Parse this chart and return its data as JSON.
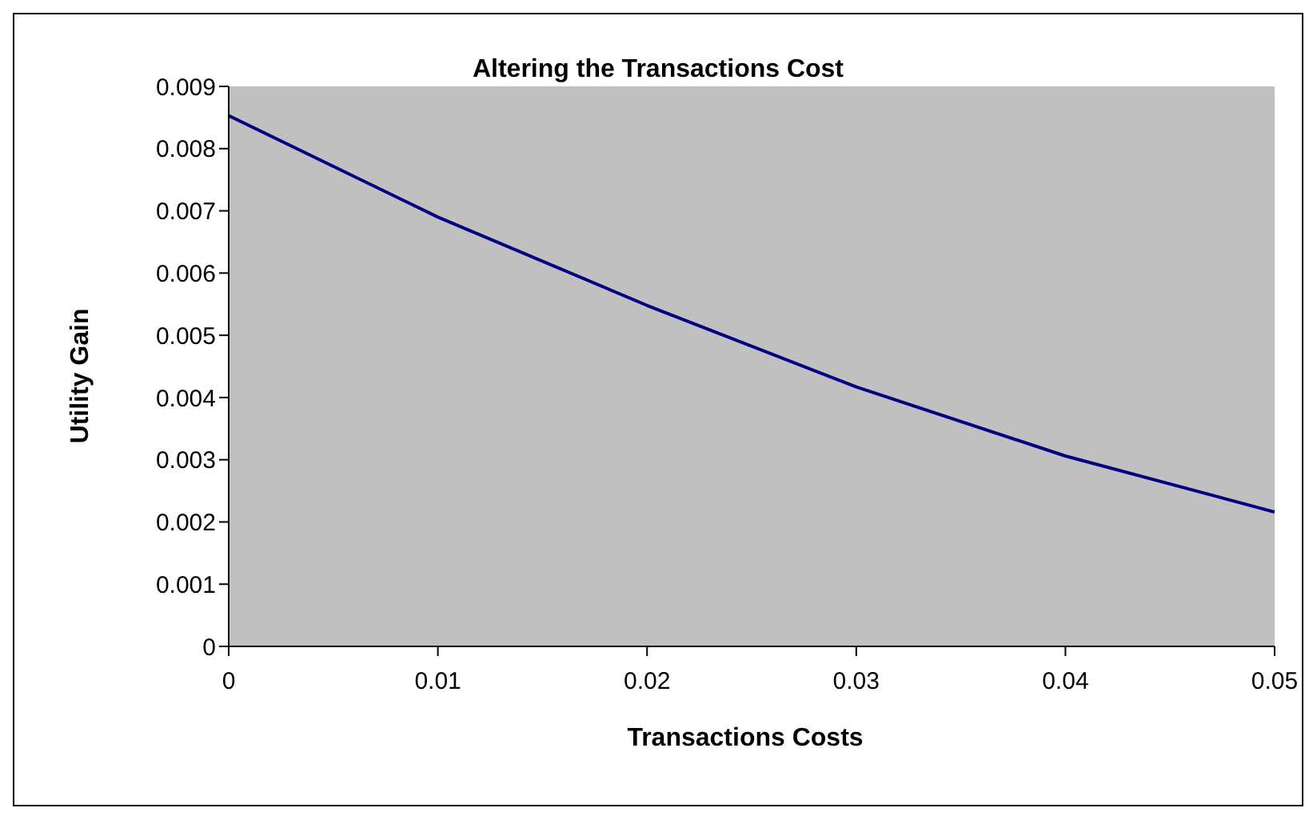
{
  "chart_data": {
    "type": "line",
    "title": "Altering the Transactions Cost",
    "xlabel": "Transactions Costs",
    "ylabel": "Utility Gain",
    "x": [
      0,
      0.01,
      0.02,
      0.03,
      0.04,
      0.05
    ],
    "series": [
      {
        "color": "#000080",
        "values": [
          0.00853,
          0.0069,
          0.00548,
          0.00417,
          0.00306,
          0.00216
        ]
      }
    ],
    "xlim": [
      0,
      0.05
    ],
    "xticks": [
      0,
      0.01,
      0.02,
      0.03,
      0.04,
      0.05
    ],
    "ylim": [
      0,
      0.009
    ],
    "yticks": [
      0,
      0.001,
      0.002,
      0.003,
      0.004,
      0.005,
      0.006,
      0.007,
      0.008,
      0.009
    ],
    "grid": false,
    "legend": false,
    "marker": "none",
    "line_style": "solid"
  }
}
